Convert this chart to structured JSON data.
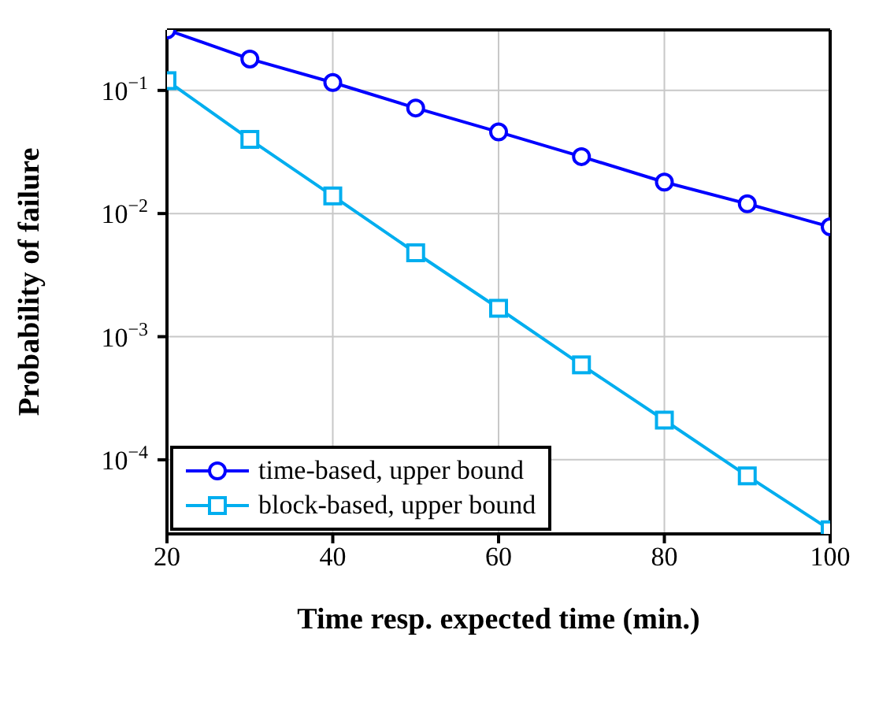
{
  "chart_data": {
    "type": "line",
    "xlabel": "Time resp. expected time (min.)",
    "ylabel": "Probability of failure",
    "x": [
      20,
      30,
      40,
      50,
      60,
      70,
      80,
      90,
      100
    ],
    "series": [
      {
        "name": "time-based, upper bound",
        "color": "#0000ff",
        "marker": "circle",
        "values": [
          0.31,
          0.18,
          0.116,
          0.072,
          0.046,
          0.029,
          0.018,
          0.012,
          0.0078
        ]
      },
      {
        "name": "block-based, upper bound",
        "color": "#00aeef",
        "marker": "square",
        "values": [
          0.12,
          0.04,
          0.0139,
          0.0048,
          0.0017,
          0.00059,
          0.00021,
          7.4e-05,
          2.7e-05
        ]
      }
    ],
    "log": "y",
    "xlim": [
      20,
      100
    ],
    "xticks": [
      20,
      40,
      60,
      80,
      100
    ],
    "ylim": [
      2.5e-05,
      0.31
    ],
    "yticks": [
      {
        "value": 0.0001,
        "label": "10$^{−4}$"
      },
      {
        "value": 0.001,
        "label": "10$^{−3}$"
      },
      {
        "value": 0.01,
        "label": "10$^{−2}$"
      },
      {
        "value": 0.1,
        "label": "10$^{−1}$"
      }
    ],
    "grid": true,
    "legend": "bottom left",
    "line_style": "solid"
  }
}
